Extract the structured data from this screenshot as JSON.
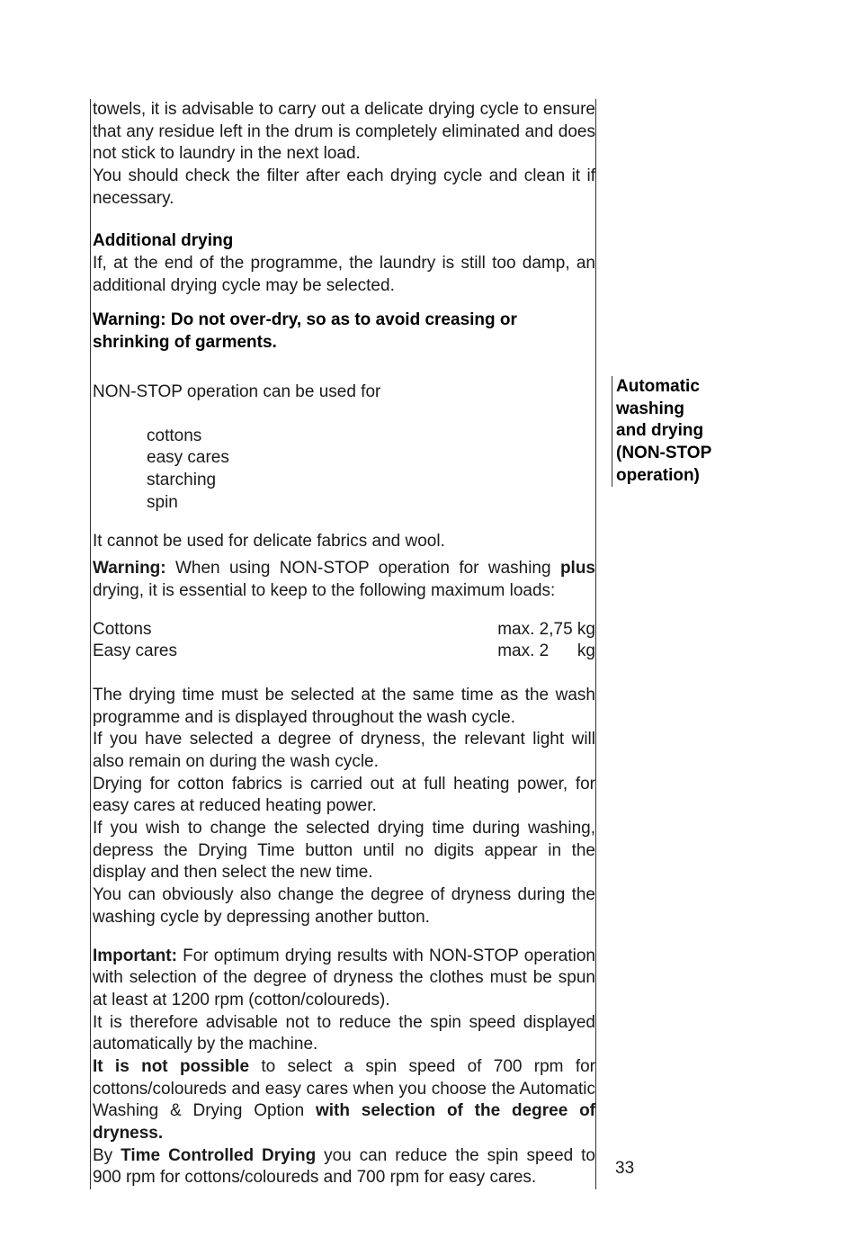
{
  "intro": {
    "p1": "towels, it is advisable to carry out a delicate drying cycle to ensure that any residue left in the drum is completely eliminated and does not stick to laundry in the next load.",
    "p2": "You should check the filter after each drying cycle and clean it if necessary."
  },
  "additionalDrying": {
    "heading": "Additional drying",
    "p1": "If, at the end of the programme, the laundry is still too damp, an additional drying cycle may be selected.",
    "warning": "Warning: Do not over-dry, so as to avoid creasing or shrinking of garments."
  },
  "nonstop": {
    "intro": "NON-STOP operation can be used for",
    "items": [
      "cottons",
      "easy cares",
      "starching",
      "spin"
    ],
    "cannot": "It cannot be used for delicate fabrics and wool.",
    "warningPrefix": "Warning:",
    "warningText": " When using NON-STOP operation for washing ",
    "warningBold": "plus",
    "warningEnd": " drying, it is essential to keep to the following maximum loads:"
  },
  "loads": [
    {
      "fabric": "Cottons",
      "max": "max. 2,75 kg"
    },
    {
      "fabric": "Easy cares",
      "max": "max. 2      kg"
    }
  ],
  "body": {
    "p1": "The drying time must be selected at the same time as the wash programme and is displayed throughout the wash cycle.",
    "p2": "If you have selected a degree of dryness, the relevant light will also remain on during the wash cycle.",
    "p3": "Drying for cotton fabrics is carried out at full heating power, for easy cares at reduced heating power.",
    "p4": "If you wish to change the selected drying time during washing, depress the Drying Time button until no digits appear in the display and then select the new time.",
    "p5": "You can obviously also change the degree of dryness during the washing cycle by depressing another button."
  },
  "important": {
    "prefix": "Important:",
    "p1": " For optimum drying results with NON-STOP operation with selection of the degree of dryness the clothes must be spun at least at 1200 rpm (cotton/coloureds).",
    "p2": "It is therefore advisable not to reduce the spin speed displayed automatically by the machine.",
    "p3a": "It is not possible",
    "p3b": " to select a spin speed of 700 rpm for cottons/coloureds and easy cares when you choose the Automatic Washing & Drying Option ",
    "p3c": "with selection of the degree of dryness.",
    "p4a": "By ",
    "p4b": "Time Controlled Drying",
    "p4c": " you can reduce the spin speed to 900 rpm for cottons/coloureds and 700 rpm for easy cares."
  },
  "sidebar": {
    "l1": "Automatic",
    "l2": "washing",
    "l3": "and drying",
    "l4": "(NON-STOP",
    "l5": "operation)"
  },
  "pageNumber": "33"
}
